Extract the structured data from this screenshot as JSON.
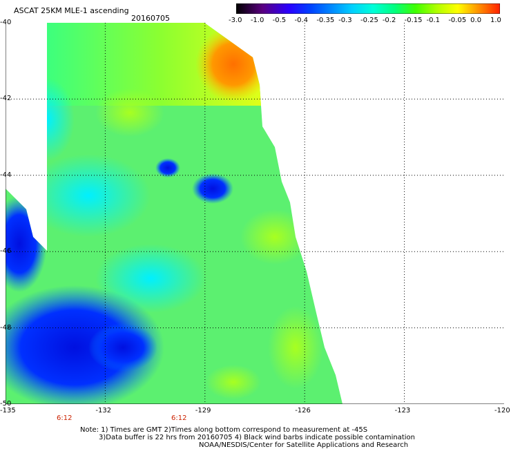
{
  "header": {
    "product": "ASCAT 25KM MLE-1 ascending",
    "date": "20160705"
  },
  "colorbar": {
    "labels": [
      "-3.0",
      "-1.0",
      "-0.5",
      "-0.4",
      "-0.35",
      "-0.3",
      "-0.25",
      "-0.2",
      "-0.15",
      "-0.1",
      "-0.05",
      "0.0",
      "1.0"
    ],
    "colors": [
      "#000000",
      "#5a0080",
      "#2a00ff",
      "#0040ff",
      "#0088ff",
      "#00d0ff",
      "#00ffd8",
      "#00ff80",
      "#40ff00",
      "#b0ff00",
      "#ffff00",
      "#ff9000",
      "#ff2000"
    ]
  },
  "map": {
    "lat_labels": [
      "-40",
      "-42",
      "-44",
      "-46",
      "-48",
      "-50"
    ],
    "lon_labels": [
      "-135",
      "-132",
      "-129",
      "-126",
      "-123",
      "-120"
    ],
    "time_labels": [
      "6:12",
      "6:12"
    ]
  },
  "notes": {
    "line1": "Note: 1) Times are GMT 2)Times along bottom correspond to measurement at -45S",
    "line2": "3)Data buffer is 22 hrs from 20160705 4) Black wind barbs indicate possible contamination",
    "line3": "NOAA/NESDIS/Center for Satellite Applications and Research"
  }
}
